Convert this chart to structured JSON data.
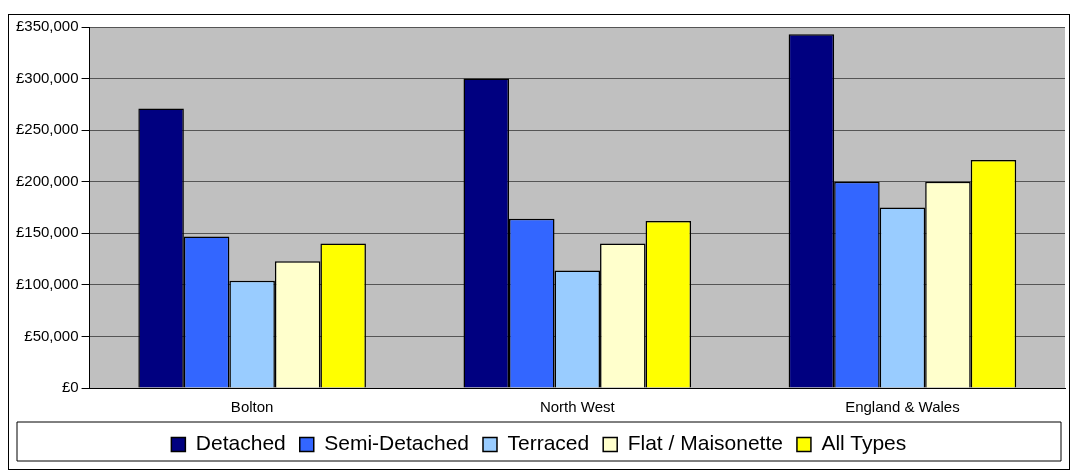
{
  "chart_data": {
    "type": "bar",
    "categories": [
      "Bolton",
      "North West",
      "England & Wales"
    ],
    "series": [
      {
        "name": "Detached",
        "color": "#000080",
        "values": [
          271000,
          300000,
          343000
        ]
      },
      {
        "name": "Semi-Detached",
        "color": "#3366ff",
        "values": [
          147000,
          164000,
          200000
        ]
      },
      {
        "name": "Terraced",
        "color": "#99ccff",
        "values": [
          104000,
          114000,
          175000
        ]
      },
      {
        "name": "Flat / Maisonette",
        "color": "#ffffcc",
        "values": [
          123000,
          140000,
          200000
        ]
      },
      {
        "name": "All Types",
        "color": "#ffff00",
        "values": [
          140000,
          162000,
          221000
        ]
      }
    ],
    "ylim": [
      0,
      350000
    ],
    "yticks": [
      {
        "value": 0,
        "label": "£0"
      },
      {
        "value": 50000,
        "label": "£50,000"
      },
      {
        "value": 100000,
        "label": "£100,000"
      },
      {
        "value": 150000,
        "label": "£150,000"
      },
      {
        "value": 200000,
        "label": "£200,000"
      },
      {
        "value": 250000,
        "label": "£250,000"
      },
      {
        "value": 300000,
        "label": "£300,000"
      },
      {
        "value": 350000,
        "label": "£350,000"
      }
    ],
    "grid": "y",
    "legend": "bottom"
  }
}
